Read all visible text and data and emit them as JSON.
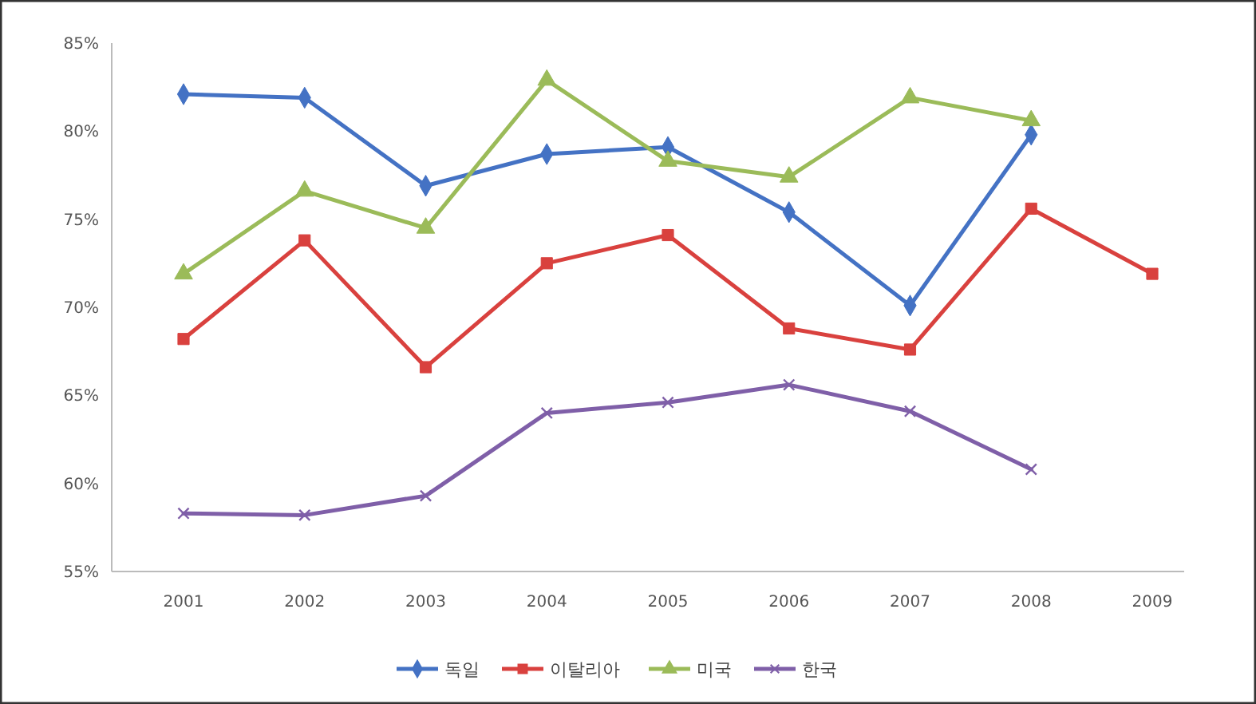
{
  "chart_data": {
    "type": "line",
    "categories": [
      "2001",
      "2002",
      "2003",
      "2004",
      "2005",
      "2006",
      "2007",
      "2008",
      "2009"
    ],
    "ylim": [
      55,
      85
    ],
    "yticks": [
      {
        "value": 55,
        "label": "55%"
      },
      {
        "value": 60,
        "label": "60%"
      },
      {
        "value": 65,
        "label": "65%"
      },
      {
        "value": 70,
        "label": "70%"
      },
      {
        "value": 75,
        "label": "75%"
      },
      {
        "value": 80,
        "label": "80%"
      },
      {
        "value": 85,
        "label": "85%"
      }
    ],
    "grid": false,
    "legend": "bottom",
    "series": [
      {
        "name": "독일",
        "color": "#4472c4",
        "marker": "diamond",
        "values": [
          82.1,
          81.9,
          76.9,
          78.7,
          79.1,
          75.4,
          70.1,
          79.8,
          null
        ]
      },
      {
        "name": "이탈리아",
        "color": "#d9413e",
        "marker": "square",
        "values": [
          68.2,
          73.8,
          66.6,
          72.5,
          74.1,
          68.8,
          67.6,
          75.6,
          71.9
        ]
      },
      {
        "name": "미국",
        "color": "#9bbb59",
        "marker": "triangle",
        "values": [
          71.9,
          76.6,
          74.5,
          82.9,
          78.3,
          77.4,
          81.9,
          80.6,
          null
        ]
      },
      {
        "name": "한국",
        "color": "#7f5fa8",
        "marker": "cross",
        "values": [
          58.3,
          58.2,
          59.3,
          64.0,
          64.6,
          65.6,
          64.1,
          60.8,
          null
        ]
      }
    ]
  }
}
